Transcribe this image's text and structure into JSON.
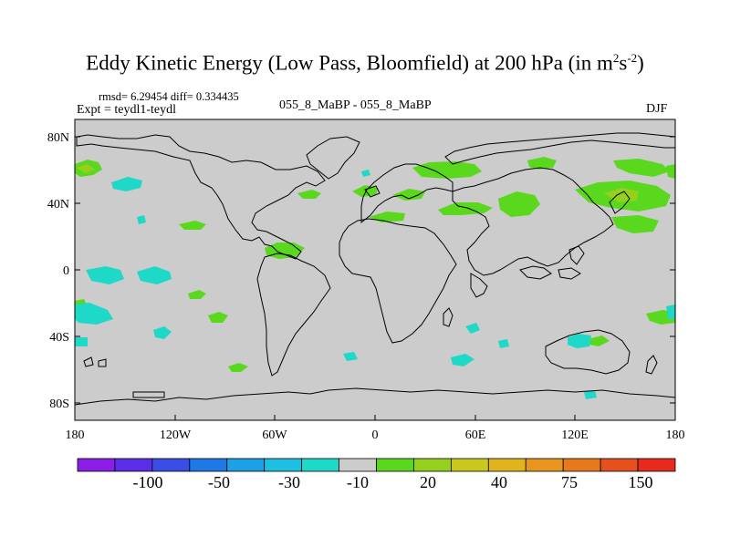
{
  "title": {
    "main": "Eddy Kinetic Energy (Low Pass, Bloomfield) at 200 hPa (in m",
    "sup1": "2",
    "mid": "s",
    "sup2": "-2",
    "close": ")"
  },
  "stats": {
    "rmsd_diff": "rmsd= 6.29454 diff= 0.334435"
  },
  "experiment": {
    "label": "Expt = teydl1-teydl"
  },
  "comparison": {
    "label": "055_8_MaBP - 055_8_MaBP"
  },
  "season": {
    "label": "DJF"
  },
  "axes": {
    "lat_ticks": [
      "80N",
      "40N",
      "0",
      "40S",
      "80S"
    ],
    "lon_ticks": [
      "180",
      "120W",
      "60W",
      "0",
      "60E",
      "120E",
      "180"
    ]
  },
  "colorbar": {
    "colors": [
      "#8a1ee6",
      "#5a2ee6",
      "#3a4ee6",
      "#1e78e6",
      "#1ea0e6",
      "#1ec0e0",
      "#1ed8c8",
      "#cccccc",
      "#5ad81e",
      "#96d01e",
      "#c8c81e",
      "#e0b41e",
      "#e6961e",
      "#e6781e",
      "#e6501e",
      "#e62a1e"
    ],
    "labels": [
      "-100",
      "-50",
      "-30",
      "-10",
      "20",
      "40",
      "75",
      "150"
    ]
  },
  "map": {
    "background_color": "#cccccc",
    "positive_color": "#5ad81e",
    "positive_strong_color": "#96d01e",
    "negative_color": "#1ed8c8"
  }
}
